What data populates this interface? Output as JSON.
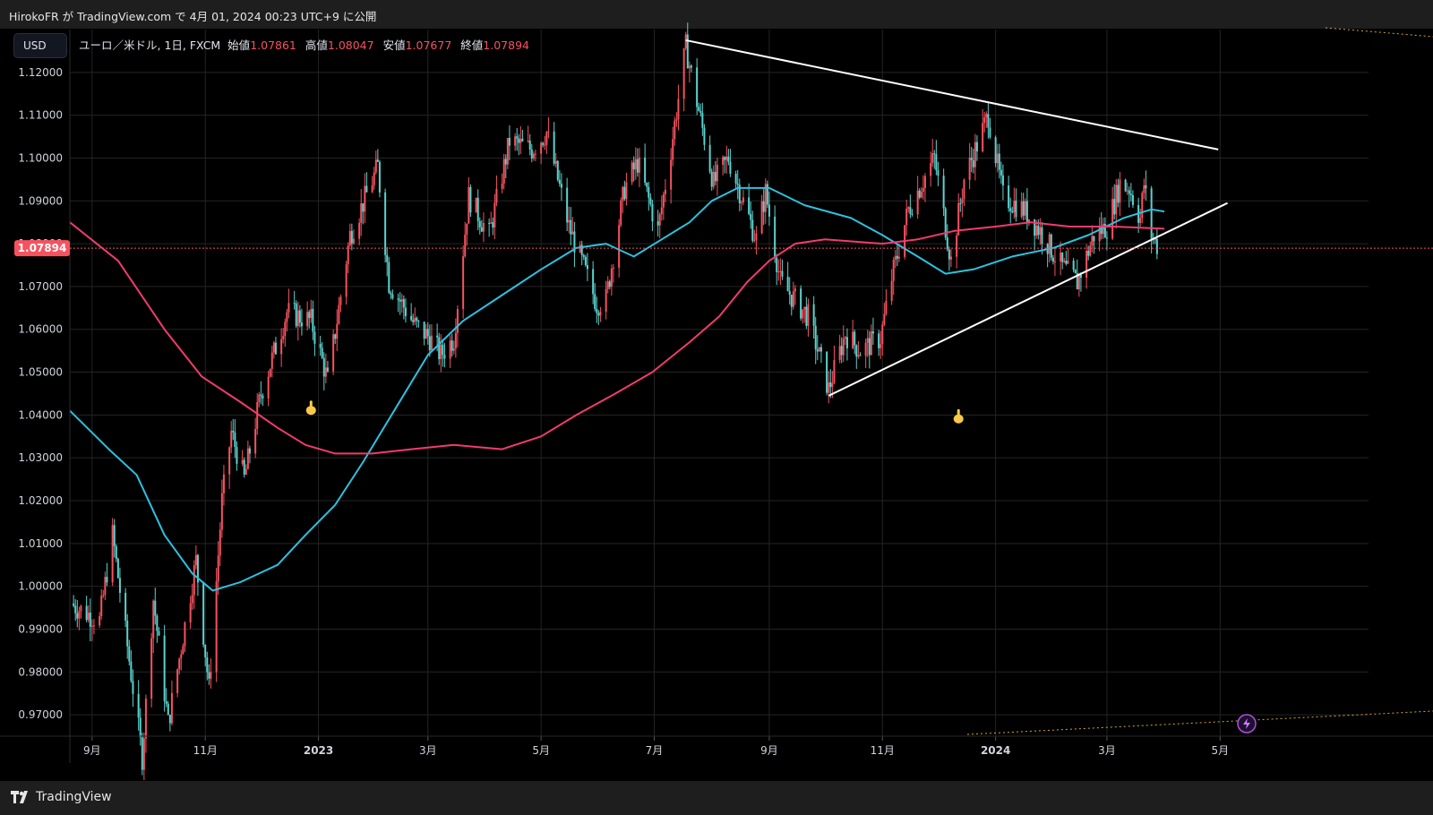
{
  "header": {
    "published_text": "HirokoFR が TradingView.com で 4月 01, 2024 00:23 UTC+9 に公開"
  },
  "toolbar": {
    "currency": "USD"
  },
  "legend": {
    "symbol": "ユーロ／米ドル, 1日, FXCM",
    "open_label": "始値",
    "open": "1.07861",
    "high_label": "高値",
    "high": "1.08047",
    "low_label": "安値",
    "low": "1.07677",
    "close_label": "終値",
    "close": "1.07894"
  },
  "footer": {
    "brand": "TradingView"
  },
  "colors": {
    "background": "#000000",
    "up_candle": "#f7525f",
    "down_candle": "#5ad3cf",
    "ma_fast": "#2cc2e0",
    "ma_slow": "#f23b6e",
    "price_line": "#f7525f",
    "trendlines": "#ffffff",
    "marker": "#f7c948"
  },
  "icons": [
    "tradingview-logo-icon",
    "hand-marker-icon",
    "flash-icon"
  ],
  "chart_data": {
    "type": "candlestick",
    "title": "ユーロ／米ドル, 1日, FXCM",
    "ylim": [
      0.965,
      1.13
    ],
    "y_ticks": [
      "1.12000",
      "1.11000",
      "1.10000",
      "1.09000",
      "1.08000",
      "1.07000",
      "1.06000",
      "1.05000",
      "1.04000",
      "1.03000",
      "1.02000",
      "1.01000",
      "1.00000",
      "0.99000",
      "0.98000",
      "0.97000"
    ],
    "x_ticks": [
      {
        "label": "9月",
        "date": "2022-09-01",
        "bold": false
      },
      {
        "label": "11月",
        "date": "2022-11-01",
        "bold": false
      },
      {
        "label": "2023",
        "date": "2023-01-01",
        "bold": true
      },
      {
        "label": "3月",
        "date": "2023-03-01",
        "bold": false
      },
      {
        "label": "5月",
        "date": "2023-05-01",
        "bold": false
      },
      {
        "label": "7月",
        "date": "2023-07-01",
        "bold": false
      },
      {
        "label": "9月",
        "date": "2023-09-01",
        "bold": false
      },
      {
        "label": "11月",
        "date": "2023-11-01",
        "bold": false
      },
      {
        "label": "2024",
        "date": "2024-01-01",
        "bold": true
      },
      {
        "label": "3月",
        "date": "2024-03-01",
        "bold": false
      },
      {
        "label": "5月",
        "date": "2024-05-01",
        "bold": false
      }
    ],
    "x_range": [
      "2022-08-20",
      "2024-07-20"
    ],
    "last_price": 1.07894,
    "last_price_label": "1.07894",
    "price_path": [
      [
        "2022-08-20",
        0.996
      ],
      [
        "2022-09-05",
        0.992
      ],
      [
        "2022-09-12",
        1.012
      ],
      [
        "2022-09-28",
        0.96
      ],
      [
        "2022-10-04",
        0.997
      ],
      [
        "2022-10-12",
        0.968
      ],
      [
        "2022-10-27",
        1.006
      ],
      [
        "2022-11-03",
        0.976
      ],
      [
        "2022-11-10",
        1.02
      ],
      [
        "2022-11-15",
        1.036
      ],
      [
        "2022-11-22",
        1.025
      ],
      [
        "2022-12-01",
        1.045
      ],
      [
        "2022-12-15",
        1.064
      ],
      [
        "2022-12-28",
        1.062
      ],
      [
        "2023-01-06",
        1.048
      ],
      [
        "2023-01-18",
        1.082
      ],
      [
        "2023-02-02",
        1.098
      ],
      [
        "2023-02-08",
        1.071
      ],
      [
        "2023-02-22",
        1.061
      ],
      [
        "2023-03-02",
        1.058
      ],
      [
        "2023-03-08",
        1.054
      ],
      [
        "2023-03-15",
        1.058
      ],
      [
        "2023-03-23",
        1.091
      ],
      [
        "2023-04-03",
        1.082
      ],
      [
        "2023-04-14",
        1.104
      ],
      [
        "2023-04-26",
        1.102
      ],
      [
        "2023-05-04",
        1.106
      ],
      [
        "2023-05-16",
        1.084
      ],
      [
        "2023-05-31",
        1.066
      ],
      [
        "2023-06-05",
        1.067
      ],
      [
        "2023-06-15",
        1.093
      ],
      [
        "2023-06-22",
        1.099
      ],
      [
        "2023-07-03",
        1.083
      ],
      [
        "2023-07-10",
        1.102
      ],
      [
        "2023-07-18",
        1.126
      ],
      [
        "2023-08-02",
        1.094
      ],
      [
        "2023-08-10",
        1.1
      ],
      [
        "2023-08-25",
        1.081
      ],
      [
        "2023-08-30",
        1.092
      ],
      [
        "2023-09-07",
        1.071
      ],
      [
        "2023-09-22",
        1.063
      ],
      [
        "2023-10-03",
        1.046
      ],
      [
        "2023-10-12",
        1.059
      ],
      [
        "2023-10-20",
        1.055
      ],
      [
        "2023-10-31",
        1.058
      ],
      [
        "2023-11-06",
        1.072
      ],
      [
        "2023-11-15",
        1.088
      ],
      [
        "2023-11-29",
        1.1
      ],
      [
        "2023-12-08",
        1.076
      ],
      [
        "2023-12-15",
        1.095
      ],
      [
        "2023-12-28",
        1.11
      ],
      [
        "2024-01-05",
        1.091
      ],
      [
        "2024-01-16",
        1.088
      ],
      [
        "2024-01-25",
        1.083
      ],
      [
        "2024-02-05",
        1.075
      ],
      [
        "2024-02-14",
        1.071
      ],
      [
        "2024-02-23",
        1.082
      ],
      [
        "2024-03-01",
        1.084
      ],
      [
        "2024-03-08",
        1.094
      ],
      [
        "2024-03-13",
        1.093
      ],
      [
        "2024-03-19",
        1.086
      ],
      [
        "2024-03-21",
        1.094
      ],
      [
        "2024-03-25",
        1.082
      ],
      [
        "2024-03-29",
        1.0789
      ]
    ],
    "series": [
      {
        "name": "",
        "color": "#2cc2e0",
        "points": [
          [
            "2022-08-20",
            1.041
          ],
          [
            "2022-09-10",
            1.032
          ],
          [
            "2022-09-25",
            1.026
          ],
          [
            "2022-10-10",
            1.012
          ],
          [
            "2022-10-25",
            1.003
          ],
          [
            "2022-11-05",
            0.999
          ],
          [
            "2022-11-20",
            1.001
          ],
          [
            "2022-12-10",
            1.005
          ],
          [
            "2022-12-25",
            1.012
          ],
          [
            "2023-01-10",
            1.019
          ],
          [
            "2023-01-25",
            1.029
          ],
          [
            "2023-02-15",
            1.044
          ],
          [
            "2023-03-01",
            1.054
          ],
          [
            "2023-03-20",
            1.062
          ],
          [
            "2023-04-10",
            1.068
          ],
          [
            "2023-05-01",
            1.074
          ],
          [
            "2023-05-20",
            1.079
          ],
          [
            "2023-06-05",
            1.08
          ],
          [
            "2023-06-20",
            1.077
          ],
          [
            "2023-07-05",
            1.081
          ],
          [
            "2023-07-20",
            1.085
          ],
          [
            "2023-08-01",
            1.09
          ],
          [
            "2023-08-15",
            1.093
          ],
          [
            "2023-09-01",
            1.093
          ],
          [
            "2023-09-20",
            1.089
          ],
          [
            "2023-10-15",
            1.086
          ],
          [
            "2023-11-01",
            1.082
          ],
          [
            "2023-11-20",
            1.077
          ],
          [
            "2023-12-05",
            1.073
          ],
          [
            "2023-12-20",
            1.074
          ],
          [
            "2024-01-10",
            1.077
          ],
          [
            "2024-02-01",
            1.079
          ],
          [
            "2024-02-20",
            1.082
          ],
          [
            "2024-03-10",
            1.086
          ],
          [
            "2024-03-25",
            1.088
          ],
          [
            "2024-04-01",
            1.0875
          ]
        ]
      },
      {
        "name": "",
        "color": "#f23b6e",
        "points": [
          [
            "2022-08-20",
            1.085
          ],
          [
            "2022-09-15",
            1.076
          ],
          [
            "2022-10-10",
            1.06
          ],
          [
            "2022-10-30",
            1.049
          ],
          [
            "2022-11-20",
            1.043
          ],
          [
            "2022-12-10",
            1.037
          ],
          [
            "2022-12-25",
            1.033
          ],
          [
            "2023-01-10",
            1.031
          ],
          [
            "2023-01-30",
            1.031
          ],
          [
            "2023-02-20",
            1.032
          ],
          [
            "2023-03-15",
            1.033
          ],
          [
            "2023-04-10",
            1.032
          ],
          [
            "2023-05-01",
            1.035
          ],
          [
            "2023-05-20",
            1.04
          ],
          [
            "2023-06-10",
            1.045
          ],
          [
            "2023-06-30",
            1.05
          ],
          [
            "2023-07-20",
            1.057
          ],
          [
            "2023-08-05",
            1.063
          ],
          [
            "2023-08-20",
            1.071
          ],
          [
            "2023-09-01",
            1.076
          ],
          [
            "2023-09-15",
            1.08
          ],
          [
            "2023-10-01",
            1.081
          ],
          [
            "2023-11-01",
            1.08
          ],
          [
            "2023-11-20",
            1.081
          ],
          [
            "2023-12-10",
            1.083
          ],
          [
            "2024-01-01",
            1.084
          ],
          [
            "2024-01-20",
            1.085
          ],
          [
            "2024-02-10",
            1.084
          ],
          [
            "2024-03-05",
            1.084
          ],
          [
            "2024-04-01",
            1.0835
          ]
        ]
      }
    ],
    "trendlines": [
      {
        "from": [
          "2023-07-18",
          1.1275
        ],
        "to": [
          "2024-04-30",
          1.102
        ]
      },
      {
        "from": [
          "2023-10-03",
          1.0445
        ],
        "to": [
          "2024-05-05",
          1.0895
        ]
      }
    ],
    "markers": [
      {
        "date": "2022-12-28",
        "value": 1.0415
      },
      {
        "date": "2023-12-12",
        "value": 1.0395
      }
    ]
  }
}
